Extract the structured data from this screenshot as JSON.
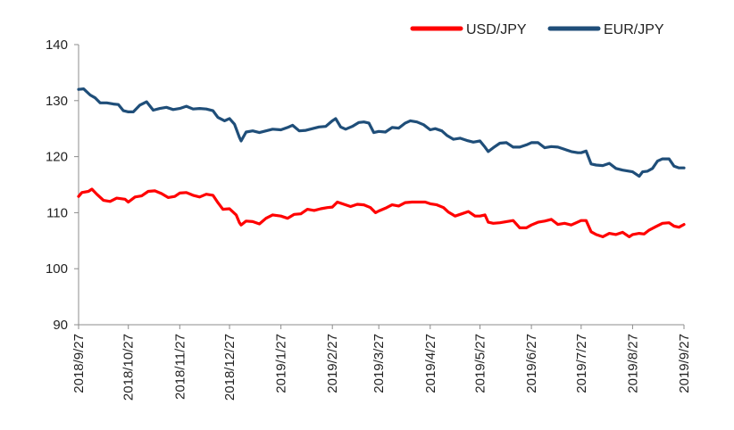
{
  "chart_data": {
    "type": "line",
    "title": "",
    "xlabel": "",
    "ylabel": "",
    "ylim": [
      90,
      140
    ],
    "yticks": [
      90,
      100,
      110,
      120,
      130,
      140
    ],
    "grid": false,
    "legend_position": "top-right",
    "x_tick_labels": [
      "2018/9/27",
      "2018/10/27",
      "2018/11/27",
      "2018/12/27",
      "2019/1/27",
      "2019/2/27",
      "2019/3/27",
      "2019/4/27",
      "2019/5/27",
      "2019/6/27",
      "2019/7/27",
      "2019/8/27",
      "2019/9/27"
    ],
    "x_start": "2018/9/27",
    "x_end": "2019/9/27",
    "series": [
      {
        "name": "USD/JPY",
        "color": "#ff0000",
        "points": [
          [
            "2018/9/27",
            112.9
          ],
          [
            "2018/9/29",
            113.6
          ],
          [
            "2018/10/3",
            113.8
          ],
          [
            "2018/10/5",
            114.2
          ],
          [
            "2018/10/8",
            113.3
          ],
          [
            "2018/10/12",
            112.2
          ],
          [
            "2018/10/16",
            112.0
          ],
          [
            "2018/10/20",
            112.6
          ],
          [
            "2018/10/25",
            112.4
          ],
          [
            "2018/10/27",
            111.9
          ],
          [
            "2018/10/31",
            112.8
          ],
          [
            "2018/11/4",
            113.0
          ],
          [
            "2018/11/8",
            113.8
          ],
          [
            "2018/11/12",
            113.9
          ],
          [
            "2018/11/16",
            113.4
          ],
          [
            "2018/11/20",
            112.7
          ],
          [
            "2018/11/24",
            112.9
          ],
          [
            "2018/11/27",
            113.5
          ],
          [
            "2018/12/1",
            113.6
          ],
          [
            "2018/12/5",
            113.1
          ],
          [
            "2018/12/9",
            112.8
          ],
          [
            "2018/12/13",
            113.3
          ],
          [
            "2018/12/17",
            113.1
          ],
          [
            "2018/12/20",
            111.8
          ],
          [
            "2018/12/23",
            110.6
          ],
          [
            "2018/12/27",
            110.7
          ],
          [
            "2018/12/31",
            109.6
          ],
          [
            "2019/1/2",
            108.2
          ],
          [
            "2019/1/3",
            107.8
          ],
          [
            "2019/1/6",
            108.5
          ],
          [
            "2019/1/10",
            108.4
          ],
          [
            "2019/1/14",
            108.0
          ],
          [
            "2019/1/18",
            109.0
          ],
          [
            "2019/1/22",
            109.6
          ],
          [
            "2019/1/27",
            109.4
          ],
          [
            "2019/1/31",
            109.0
          ],
          [
            "2019/2/4",
            109.7
          ],
          [
            "2019/2/8",
            109.8
          ],
          [
            "2019/2/12",
            110.6
          ],
          [
            "2019/2/16",
            110.4
          ],
          [
            "2019/2/20",
            110.7
          ],
          [
            "2019/2/24",
            110.9
          ],
          [
            "2019/2/27",
            111.0
          ],
          [
            "2019/3/2",
            111.9
          ],
          [
            "2019/3/6",
            111.5
          ],
          [
            "2019/3/10",
            111.1
          ],
          [
            "2019/3/14",
            111.5
          ],
          [
            "2019/3/18",
            111.4
          ],
          [
            "2019/3/22",
            110.9
          ],
          [
            "2019/3/25",
            110.0
          ],
          [
            "2019/3/27",
            110.3
          ],
          [
            "2019/3/31",
            110.8
          ],
          [
            "2019/4/4",
            111.4
          ],
          [
            "2019/4/8",
            111.2
          ],
          [
            "2019/4/12",
            111.8
          ],
          [
            "2019/4/16",
            111.9
          ],
          [
            "2019/4/20",
            111.9
          ],
          [
            "2019/4/24",
            111.9
          ],
          [
            "2019/4/27",
            111.6
          ],
          [
            "2019/5/1",
            111.4
          ],
          [
            "2019/5/5",
            110.9
          ],
          [
            "2019/5/8",
            110.1
          ],
          [
            "2019/5/12",
            109.4
          ],
          [
            "2019/5/16",
            109.8
          ],
          [
            "2019/5/20",
            110.2
          ],
          [
            "2019/5/24",
            109.4
          ],
          [
            "2019/5/27",
            109.4
          ],
          [
            "2019/5/30",
            109.6
          ],
          [
            "2019/6/1",
            108.3
          ],
          [
            "2019/6/4",
            108.1
          ],
          [
            "2019/6/8",
            108.2
          ],
          [
            "2019/6/12",
            108.4
          ],
          [
            "2019/6/16",
            108.6
          ],
          [
            "2019/6/20",
            107.3
          ],
          [
            "2019/6/24",
            107.3
          ],
          [
            "2019/6/27",
            107.8
          ],
          [
            "2019/7/1",
            108.3
          ],
          [
            "2019/7/5",
            108.5
          ],
          [
            "2019/7/9",
            108.8
          ],
          [
            "2019/7/13",
            107.9
          ],
          [
            "2019/7/17",
            108.1
          ],
          [
            "2019/7/21",
            107.8
          ],
          [
            "2019/7/24",
            108.2
          ],
          [
            "2019/7/27",
            108.6
          ],
          [
            "2019/7/30",
            108.6
          ],
          [
            "2019/8/2",
            106.6
          ],
          [
            "2019/8/5",
            106.1
          ],
          [
            "2019/8/9",
            105.7
          ],
          [
            "2019/8/13",
            106.3
          ],
          [
            "2019/8/17",
            106.1
          ],
          [
            "2019/8/21",
            106.5
          ],
          [
            "2019/8/25",
            105.7
          ],
          [
            "2019/8/27",
            106.1
          ],
          [
            "2019/8/31",
            106.3
          ],
          [
            "2019/9/3",
            106.2
          ],
          [
            "2019/9/6",
            106.9
          ],
          [
            "2019/9/10",
            107.5
          ],
          [
            "2019/9/14",
            108.1
          ],
          [
            "2019/9/18",
            108.2
          ],
          [
            "2019/9/21",
            107.6
          ],
          [
            "2019/9/24",
            107.4
          ],
          [
            "2019/9/27",
            107.9
          ]
        ]
      },
      {
        "name": "EUR/JPY",
        "color": "#1f4e79",
        "points": [
          [
            "2018/9/27",
            132.0
          ],
          [
            "2018/9/30",
            132.1
          ],
          [
            "2018/10/4",
            131.0
          ],
          [
            "2018/10/7",
            130.5
          ],
          [
            "2018/10/10",
            129.6
          ],
          [
            "2018/10/14",
            129.6
          ],
          [
            "2018/10/18",
            129.4
          ],
          [
            "2018/10/21",
            129.3
          ],
          [
            "2018/10/24",
            128.2
          ],
          [
            "2018/10/27",
            128.0
          ],
          [
            "2018/10/30",
            128.0
          ],
          [
            "2018/11/3",
            129.2
          ],
          [
            "2018/11/7",
            129.8
          ],
          [
            "2018/11/11",
            128.3
          ],
          [
            "2018/11/15",
            128.6
          ],
          [
            "2018/11/19",
            128.8
          ],
          [
            "2018/11/23",
            128.4
          ],
          [
            "2018/11/27",
            128.6
          ],
          [
            "2018/12/1",
            129.0
          ],
          [
            "2018/12/5",
            128.5
          ],
          [
            "2018/12/9",
            128.6
          ],
          [
            "2018/12/13",
            128.5
          ],
          [
            "2018/12/17",
            128.2
          ],
          [
            "2018/12/20",
            127.0
          ],
          [
            "2018/12/24",
            126.4
          ],
          [
            "2018/12/27",
            126.8
          ],
          [
            "2018/12/30",
            125.8
          ],
          [
            "2019/1/2",
            123.4
          ],
          [
            "2019/1/3",
            122.8
          ],
          [
            "2019/1/6",
            124.4
          ],
          [
            "2019/1/10",
            124.6
          ],
          [
            "2019/1/14",
            124.3
          ],
          [
            "2019/1/18",
            124.6
          ],
          [
            "2019/1/22",
            124.9
          ],
          [
            "2019/1/27",
            124.8
          ],
          [
            "2019/1/31",
            125.2
          ],
          [
            "2019/2/3",
            125.6
          ],
          [
            "2019/2/7",
            124.6
          ],
          [
            "2019/2/11",
            124.7
          ],
          [
            "2019/2/15",
            125.0
          ],
          [
            "2019/2/19",
            125.3
          ],
          [
            "2019/2/23",
            125.4
          ],
          [
            "2019/2/27",
            126.4
          ],
          [
            "2019/3/1",
            126.8
          ],
          [
            "2019/3/4",
            125.3
          ],
          [
            "2019/3/7",
            124.9
          ],
          [
            "2019/3/11",
            125.4
          ],
          [
            "2019/3/15",
            126.1
          ],
          [
            "2019/3/18",
            126.2
          ],
          [
            "2019/3/21",
            126.0
          ],
          [
            "2019/3/24",
            124.3
          ],
          [
            "2019/3/27",
            124.5
          ],
          [
            "2019/3/31",
            124.4
          ],
          [
            "2019/4/4",
            125.2
          ],
          [
            "2019/4/8",
            125.1
          ],
          [
            "2019/4/12",
            126.0
          ],
          [
            "2019/4/15",
            126.4
          ],
          [
            "2019/4/19",
            126.2
          ],
          [
            "2019/4/23",
            125.7
          ],
          [
            "2019/4/27",
            124.8
          ],
          [
            "2019/4/30",
            125.0
          ],
          [
            "2019/5/4",
            124.6
          ],
          [
            "2019/5/7",
            123.8
          ],
          [
            "2019/5/11",
            123.1
          ],
          [
            "2019/5/15",
            123.3
          ],
          [
            "2019/5/19",
            122.9
          ],
          [
            "2019/5/23",
            122.6
          ],
          [
            "2019/5/27",
            122.8
          ],
          [
            "2019/5/30",
            121.7
          ],
          [
            "2019/6/1",
            120.9
          ],
          [
            "2019/6/4",
            121.6
          ],
          [
            "2019/6/8",
            122.4
          ],
          [
            "2019/6/12",
            122.5
          ],
          [
            "2019/6/16",
            121.7
          ],
          [
            "2019/6/20",
            121.7
          ],
          [
            "2019/6/24",
            122.1
          ],
          [
            "2019/6/27",
            122.5
          ],
          [
            "2019/7/1",
            122.5
          ],
          [
            "2019/7/5",
            121.6
          ],
          [
            "2019/7/9",
            121.8
          ],
          [
            "2019/7/13",
            121.7
          ],
          [
            "2019/7/17",
            121.3
          ],
          [
            "2019/7/21",
            120.9
          ],
          [
            "2019/7/25",
            120.7
          ],
          [
            "2019/7/27",
            120.7
          ],
          [
            "2019/7/30",
            121.0
          ],
          [
            "2019/8/2",
            118.7
          ],
          [
            "2019/8/5",
            118.5
          ],
          [
            "2019/8/9",
            118.4
          ],
          [
            "2019/8/13",
            118.8
          ],
          [
            "2019/8/17",
            117.9
          ],
          [
            "2019/8/21",
            117.6
          ],
          [
            "2019/8/25",
            117.4
          ],
          [
            "2019/8/27",
            117.3
          ],
          [
            "2019/8/31",
            116.5
          ],
          [
            "2019/9/2",
            117.3
          ],
          [
            "2019/9/5",
            117.4
          ],
          [
            "2019/9/8",
            117.9
          ],
          [
            "2019/9/11",
            119.2
          ],
          [
            "2019/9/14",
            119.6
          ],
          [
            "2019/9/18",
            119.6
          ],
          [
            "2019/9/21",
            118.3
          ],
          [
            "2019/9/24",
            118.0
          ],
          [
            "2019/9/27",
            118.0
          ]
        ]
      }
    ]
  }
}
